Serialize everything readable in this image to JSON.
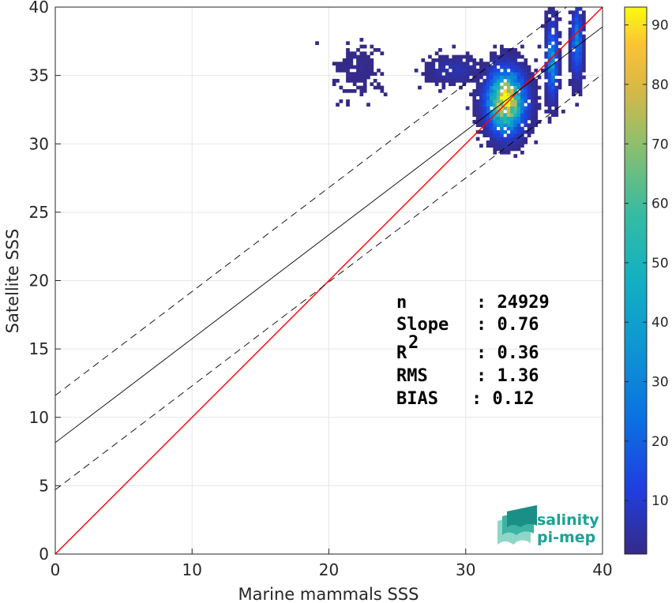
{
  "chart_data": {
    "type": "heatmap",
    "title": "",
    "xlabel": "Marine mammals SSS",
    "ylabel": "Satellite SSS",
    "xlim": [
      0,
      40
    ],
    "ylim": [
      0,
      40
    ],
    "x_ticks": [
      0,
      10,
      20,
      30,
      40
    ],
    "y_ticks": [
      0,
      5,
      10,
      15,
      20,
      25,
      30,
      35,
      40
    ],
    "grid": true,
    "colormap": "parula",
    "colorbar": {
      "min": 1,
      "max": 93,
      "ticks": [
        10,
        20,
        30,
        40,
        50,
        60,
        70,
        80,
        90
      ]
    },
    "density_clusters": [
      {
        "name": "main",
        "x_center": 32.8,
        "y_center": 33.0,
        "x_spread": 0.8,
        "y_spread": 1.3,
        "peak_count": 93,
        "approx_points": 14000
      },
      {
        "name": "upper-right",
        "x_center": 36.2,
        "y_center": 36.0,
        "x_spread": 0.25,
        "y_spread": 1.6,
        "peak_count": 35,
        "approx_points": 3000
      },
      {
        "name": "far-right",
        "x_center": 38.0,
        "y_center": 37.3,
        "x_spread": 0.25,
        "y_spread": 1.5,
        "peak_count": 28,
        "approx_points": 2500
      },
      {
        "name": "left-halo",
        "x_center": 29.0,
        "y_center": 35.3,
        "x_spread": 1.2,
        "y_spread": 0.6,
        "peak_count": 6,
        "approx_points": 500
      },
      {
        "name": "sparse-outliers",
        "x_center": 22.0,
        "y_center": 35.5,
        "x_spread": 1.0,
        "y_spread": 1.2,
        "peak_count": 2,
        "approx_points": 30
      }
    ],
    "lines": [
      {
        "name": "one-to-one",
        "color": "#ff0000",
        "style": "solid",
        "intercept": 0,
        "slope": 1
      },
      {
        "name": "regression",
        "color": "#000000",
        "style": "solid",
        "intercept": 8.15,
        "slope": 0.76
      },
      {
        "name": "regression-upper",
        "color": "#000000",
        "style": "dashed",
        "intercept": 11.6,
        "slope": 0.76
      },
      {
        "name": "regression-lower",
        "color": "#000000",
        "style": "dashed",
        "intercept": 4.7,
        "slope": 0.76
      }
    ]
  },
  "stats": {
    "n_label": "n",
    "n_value": ": 24929",
    "slope_label": "Slope",
    "slope_value": ": 0.76",
    "r2_label": "R",
    "r2_sup": "2",
    "r2_value": ": 0.36",
    "rms_label": "RMS",
    "rms_value": ": 1.36",
    "bias_label": "BIAS",
    "bias_value": ": 0.12"
  },
  "logo": {
    "line1": "salinity",
    "line2": "pi-mep",
    "colors": {
      "text": "#1aa395",
      "layer1": "#1b8f85",
      "layer2": "#3db3a3",
      "layer3": "#8fd6c8"
    }
  }
}
